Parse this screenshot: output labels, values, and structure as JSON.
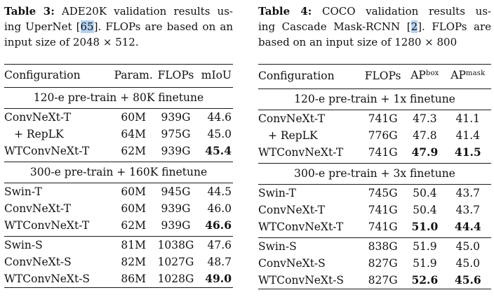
{
  "colors": {
    "citation_highlight": "#b3d2f1",
    "text": "#111111",
    "rule": "#1a1a1a"
  },
  "left": {
    "caption": {
      "label": "Table 3:",
      "line1": "ADE20K validation results us-",
      "line2_pre": "ing UperNet [",
      "citation": "65",
      "line2_post": "]. FLOPs are based on an",
      "line3": "input size of 2048 × 512."
    },
    "table": {
      "headers": [
        "Configuration",
        "Param.",
        "FLOPs",
        "mIoU"
      ],
      "section1_title": "120-e pre-train + 80K finetune",
      "section2_title": "300-e pre-train + 160K finetune",
      "rows": [
        [
          "ConvNeXt-T",
          "60M",
          "939G",
          "44.6"
        ],
        [
          "+ RepLK",
          "64M",
          "975G",
          "45.0"
        ],
        [
          "WTConvNeXt-T",
          "62M",
          "939G",
          "45.4"
        ],
        [
          "Swin-T",
          "60M",
          "945G",
          "44.5"
        ],
        [
          "ConvNeXt-T",
          "60M",
          "939G",
          "46.0"
        ],
        [
          "WTConvNeXt-T",
          "62M",
          "939G",
          "46.6"
        ],
        [
          "Swin-S",
          "81M",
          "1038G",
          "47.6"
        ],
        [
          "ConvNeXt-S",
          "82M",
          "1027G",
          "48.7"
        ],
        [
          "WTConvNeXt-S",
          "86M",
          "1028G",
          "49.0"
        ]
      ]
    }
  },
  "right": {
    "caption": {
      "label": "Table 4:",
      "line1": "COCO validation results us-",
      "line2_pre": "ing Cascade Mask-RCNN [",
      "citation": "2",
      "line2_post": "]. FLOPs are",
      "line3": "based on an input size of 1280 × 800"
    },
    "table": {
      "headers": [
        "Configuration",
        "FLOPs",
        "AP",
        "AP"
      ],
      "header_sups": [
        "",
        "",
        "box",
        "mask"
      ],
      "section1_title": "120-e pre-train + 1x finetune",
      "section2_title": "300-e pre-train + 3x finetune",
      "rows": [
        [
          "ConvNeXt-T",
          "741G",
          "47.3",
          "41.1"
        ],
        [
          "+ RepLK",
          "776G",
          "47.8",
          "41.4"
        ],
        [
          "WTConvNeXt-T",
          "741G",
          "47.9",
          "41.5"
        ],
        [
          "Swin-T",
          "745G",
          "50.4",
          "43.7"
        ],
        [
          "ConvNeXt-T",
          "741G",
          "50.4",
          "43.7"
        ],
        [
          "WTConvNeXt-T",
          "741G",
          "51.0",
          "44.4"
        ],
        [
          "Swin-S",
          "838G",
          "51.9",
          "45.0"
        ],
        [
          "ConvNeXt-S",
          "827G",
          "51.9",
          "45.0"
        ],
        [
          "WTConvNeXt-S",
          "827G",
          "52.6",
          "45.6"
        ]
      ]
    }
  }
}
